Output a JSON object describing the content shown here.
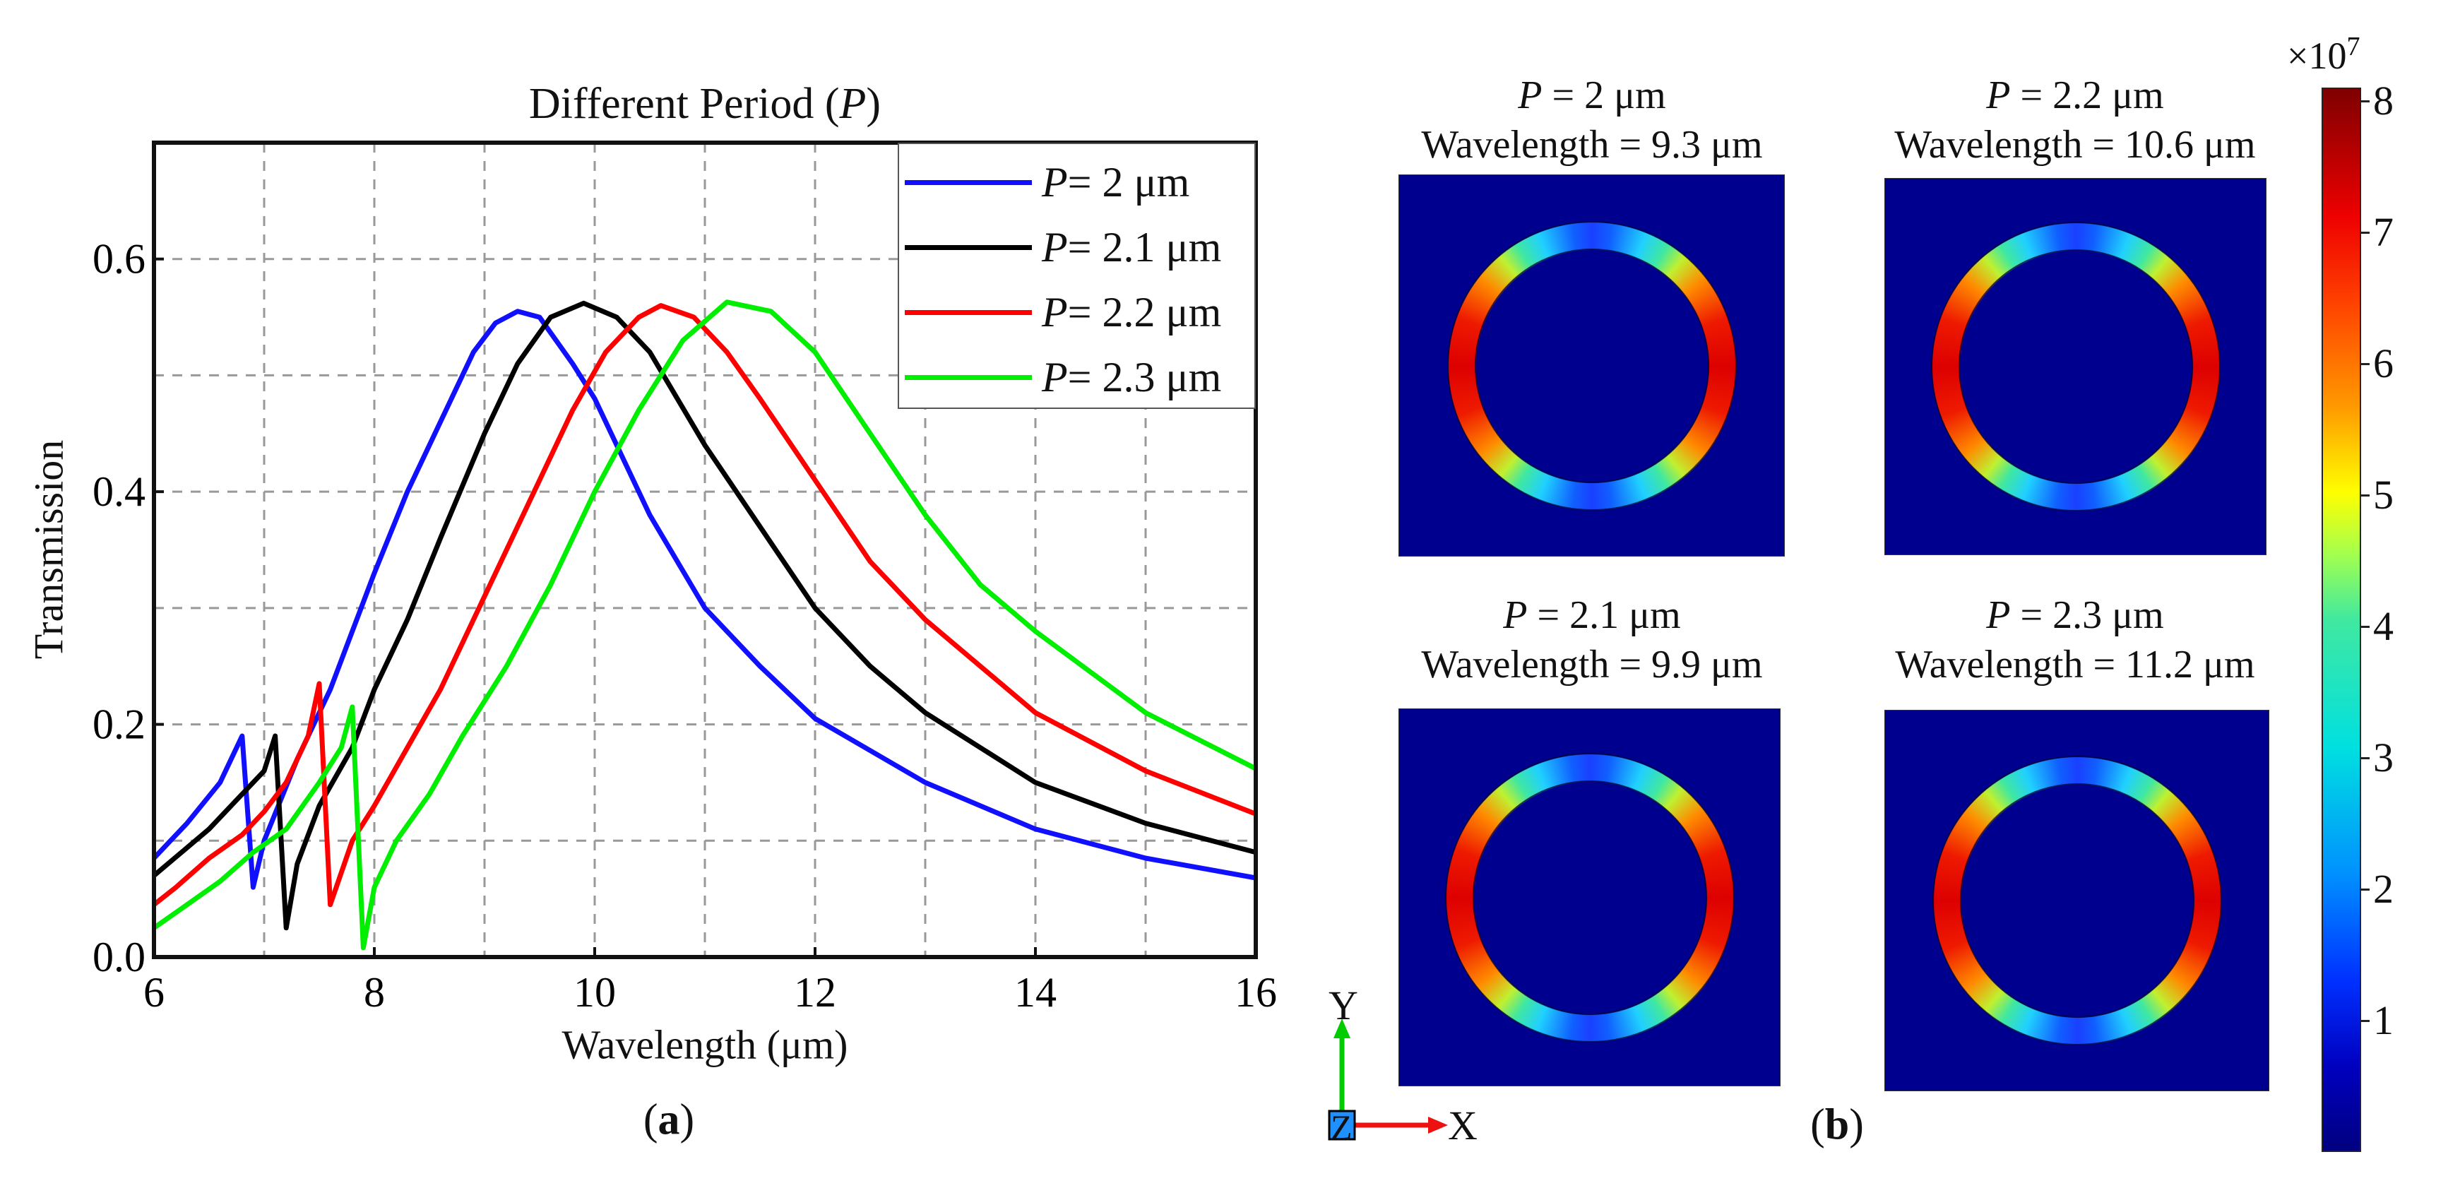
{
  "panel_a": {
    "label_open": "(",
    "label_letter": "a",
    "label_close": ")"
  },
  "panel_b": {
    "label_open": "(",
    "label_letter": "b",
    "label_close": ")",
    "field_maps": [
      {
        "var": "P",
        "period": " = 2 μm",
        "wavelength": "Wavelength = 9.3 μm"
      },
      {
        "var": "P",
        "period": " = 2.2 μm",
        "wavelength": "Wavelength = 10.6 μm"
      },
      {
        "var": "P",
        "period": " = 2.1 μm",
        "wavelength": "Wavelength = 9.9 μm"
      },
      {
        "var": "P",
        "period": " = 2.3 μm",
        "wavelength": "Wavelength = 11.2 μm"
      }
    ],
    "colorbar": {
      "multiplier_base": "×10",
      "multiplier_exp": "7",
      "ticks": [
        "1",
        "2",
        "3",
        "4",
        "5",
        "6",
        "7",
        "8"
      ],
      "tick_values": [
        1,
        2,
        3,
        4,
        5,
        6,
        7,
        8
      ],
      "range": [
        0,
        8.1
      ],
      "colormap": "jet"
    },
    "axes_triad": {
      "y": "Y",
      "x": "X",
      "z": "Z",
      "y_color": "#00cc00",
      "x_color": "#ee1111",
      "z_color": "#1e90ff"
    }
  },
  "chart_data": {
    "type": "line",
    "title_prefix": "Different Period (",
    "title_var": "P",
    "title_suffix": ")",
    "xlabel": "Wavelength (μm)",
    "ylabel": "Transmission",
    "xlim": [
      6,
      16
    ],
    "ylim": [
      0,
      0.7
    ],
    "xticks": [
      6,
      8,
      10,
      12,
      14,
      16
    ],
    "xtick_labels": [
      "6",
      "8",
      "10",
      "12",
      "14",
      "16"
    ],
    "yticks": [
      0.0,
      0.2,
      0.4,
      0.6
    ],
    "ytick_labels": [
      "0.0",
      "0.2",
      "0.4",
      "0.6"
    ],
    "grid": true,
    "legend_position": "top-right",
    "series": [
      {
        "name_var": "P",
        "name_rest": " = 2 μm",
        "color": "#1010ff",
        "x": [
          6,
          6.3,
          6.6,
          6.8,
          6.9,
          7.0,
          7.3,
          7.6,
          7.8,
          8.0,
          8.3,
          8.6,
          8.9,
          9.1,
          9.3,
          9.5,
          9.8,
          10,
          10.5,
          11,
          11.5,
          12,
          13,
          14,
          15,
          16
        ],
        "y": [
          0.085,
          0.115,
          0.15,
          0.19,
          0.06,
          0.1,
          0.17,
          0.23,
          0.28,
          0.33,
          0.4,
          0.46,
          0.52,
          0.545,
          0.555,
          0.55,
          0.51,
          0.48,
          0.38,
          0.3,
          0.25,
          0.205,
          0.15,
          0.11,
          0.085,
          0.068
        ]
      },
      {
        "name_var": "P",
        "name_rest": " = 2.1 μm",
        "color": "#000000",
        "x": [
          6,
          6.5,
          6.8,
          7.0,
          7.1,
          7.2,
          7.3,
          7.5,
          7.8,
          8.0,
          8.3,
          8.6,
          9.0,
          9.3,
          9.6,
          9.9,
          10.2,
          10.5,
          11,
          11.5,
          12,
          12.5,
          13,
          14,
          15,
          16
        ],
        "y": [
          0.07,
          0.11,
          0.14,
          0.16,
          0.19,
          0.025,
          0.08,
          0.13,
          0.18,
          0.23,
          0.29,
          0.36,
          0.45,
          0.51,
          0.55,
          0.562,
          0.55,
          0.52,
          0.44,
          0.37,
          0.3,
          0.25,
          0.21,
          0.15,
          0.115,
          0.09
        ]
      },
      {
        "name_var": "P",
        "name_rest": " = 2.2 μm",
        "color": "#ff0000",
        "x": [
          6,
          6.2,
          6.5,
          6.8,
          7.0,
          7.2,
          7.4,
          7.5,
          7.6,
          7.8,
          8.0,
          8.3,
          8.6,
          8.9,
          9.2,
          9.5,
          9.8,
          10.1,
          10.4,
          10.6,
          10.9,
          11.2,
          11.5,
          12,
          12.5,
          13,
          14,
          15,
          16
        ],
        "y": [
          0.045,
          0.06,
          0.085,
          0.105,
          0.125,
          0.15,
          0.19,
          0.235,
          0.045,
          0.1,
          0.13,
          0.18,
          0.23,
          0.29,
          0.35,
          0.41,
          0.47,
          0.52,
          0.55,
          0.56,
          0.55,
          0.52,
          0.48,
          0.41,
          0.34,
          0.29,
          0.21,
          0.16,
          0.123
        ]
      },
      {
        "name_var": "P",
        "name_rest": " = 2.3 μm",
        "color": "#00ee00",
        "x": [
          6,
          6.3,
          6.6,
          6.9,
          7.2,
          7.5,
          7.7,
          7.8,
          7.9,
          8.0,
          8.2,
          8.5,
          8.8,
          9.2,
          9.6,
          10,
          10.4,
          10.8,
          11.2,
          11.6,
          12,
          12.5,
          13,
          13.5,
          14,
          15,
          16
        ],
        "y": [
          0.025,
          0.045,
          0.065,
          0.09,
          0.11,
          0.15,
          0.18,
          0.215,
          0.008,
          0.06,
          0.1,
          0.14,
          0.19,
          0.25,
          0.32,
          0.4,
          0.47,
          0.53,
          0.563,
          0.555,
          0.52,
          0.45,
          0.38,
          0.32,
          0.28,
          0.21,
          0.162
        ]
      }
    ]
  }
}
